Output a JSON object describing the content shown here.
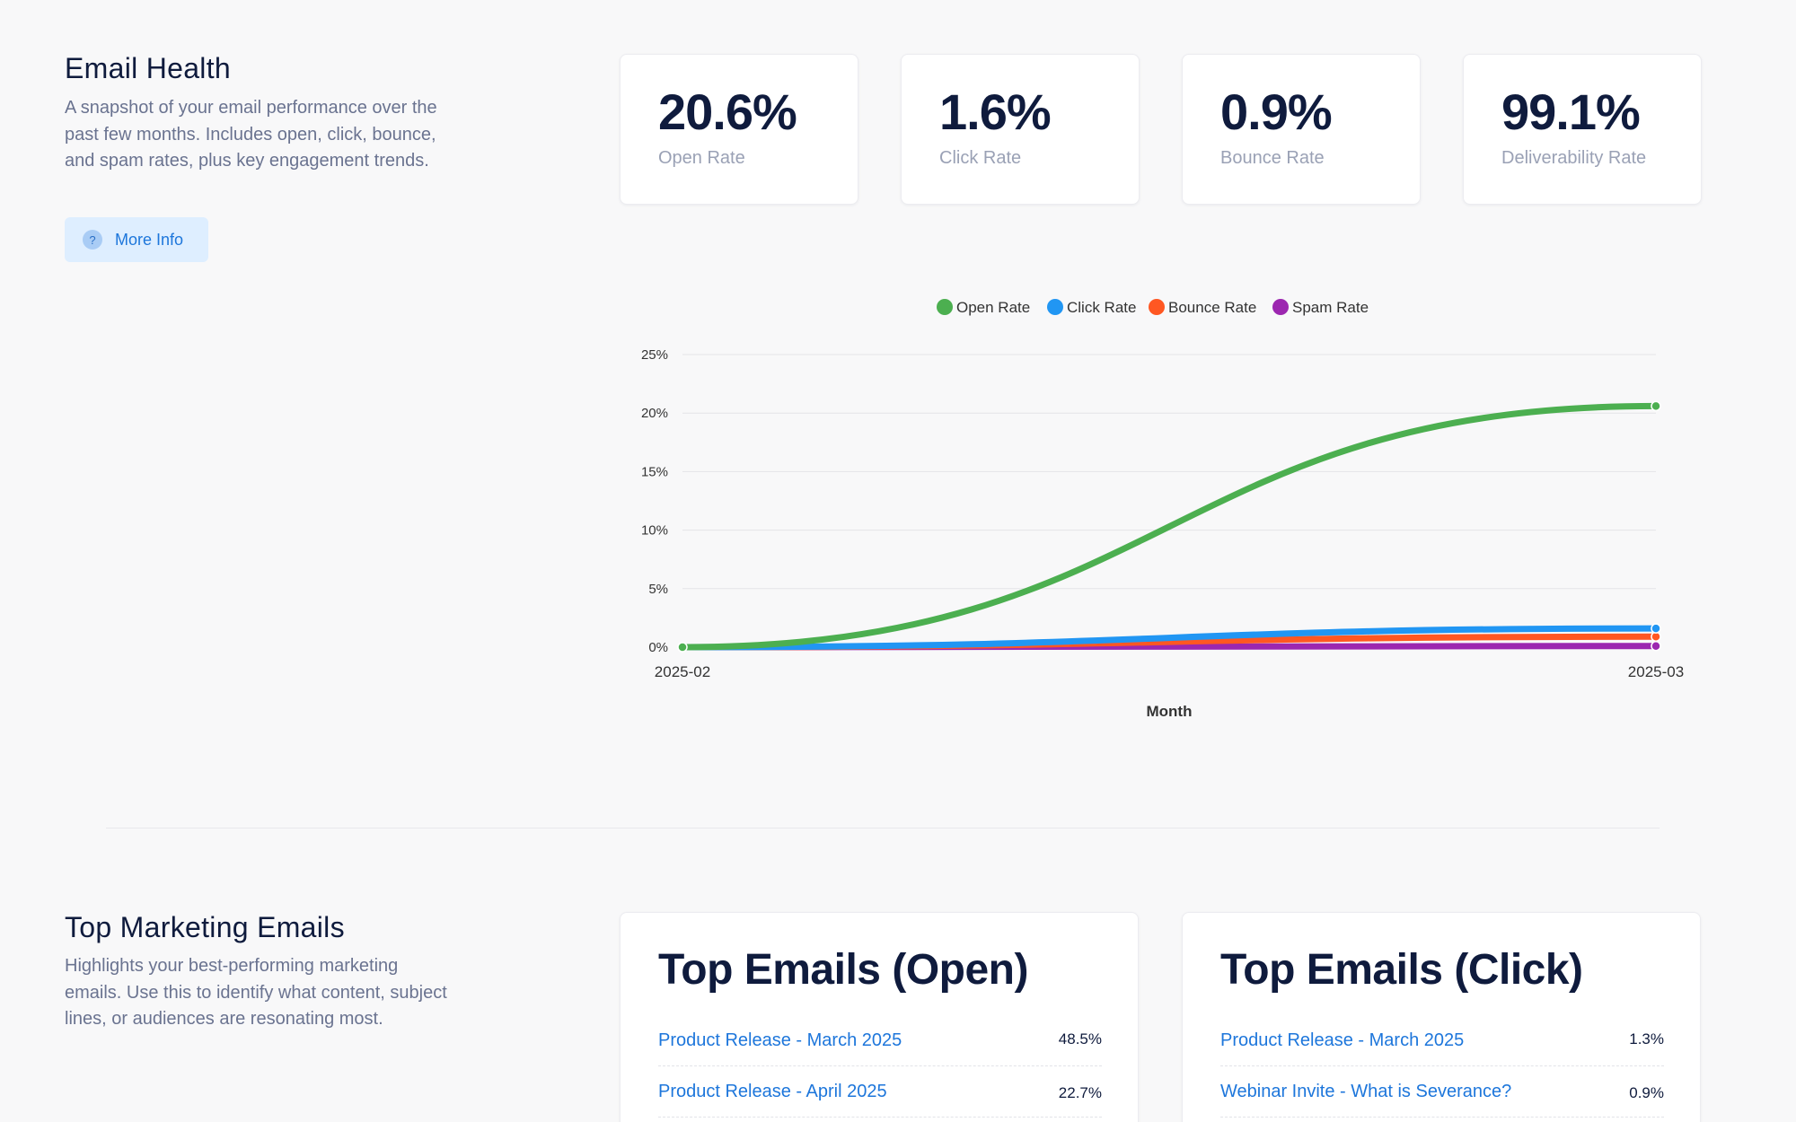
{
  "health": {
    "title": "Email Health",
    "description": "A snapshot of your email performance over the past few months. Includes open, click, bounce, and spam rates, plus key engagement trends.",
    "more_info_label": "More Info",
    "kpis": [
      {
        "value": "20.6%",
        "label": "Open Rate"
      },
      {
        "value": "1.6%",
        "label": "Click Rate"
      },
      {
        "value": "0.9%",
        "label": "Bounce Rate"
      },
      {
        "value": "99.1%",
        "label": "Deliverability Rate"
      }
    ]
  },
  "chart_data": {
    "type": "line",
    "x": [
      "2025-02",
      "2025-03"
    ],
    "series": [
      {
        "name": "Open Rate",
        "color": "#4caf50",
        "values": [
          0,
          20.6
        ]
      },
      {
        "name": "Click Rate",
        "color": "#2196f3",
        "values": [
          0,
          1.6
        ]
      },
      {
        "name": "Bounce Rate",
        "color": "#ff5722",
        "values": [
          0,
          0.9
        ]
      },
      {
        "name": "Spam Rate",
        "color": "#9c27b0",
        "values": [
          0,
          0.1
        ]
      }
    ],
    "yticks": [
      "0%",
      "5%",
      "10%",
      "15%",
      "20%",
      "25%"
    ],
    "ylim": [
      0,
      25
    ],
    "xlabel": "Month",
    "ylabel": "",
    "legend": "top-center",
    "grid": true
  },
  "top": {
    "title": "Top Marketing Emails",
    "description": "Highlights your best-performing marketing emails. Use this to identify what content, subject lines, or audiences are resonating most.",
    "open_card": {
      "title": "Top Emails (Open)",
      "rows": [
        {
          "name": "Product Release - March 2025",
          "pct": "48.5%"
        },
        {
          "name": "Product Release - April 2025",
          "pct": "22.7%"
        }
      ]
    },
    "click_card": {
      "title": "Top Emails (Click)",
      "rows": [
        {
          "name": "Product Release - March 2025",
          "pct": "1.3%"
        },
        {
          "name": "Webinar Invite - What is Severance?",
          "pct": "0.9%"
        }
      ]
    }
  }
}
